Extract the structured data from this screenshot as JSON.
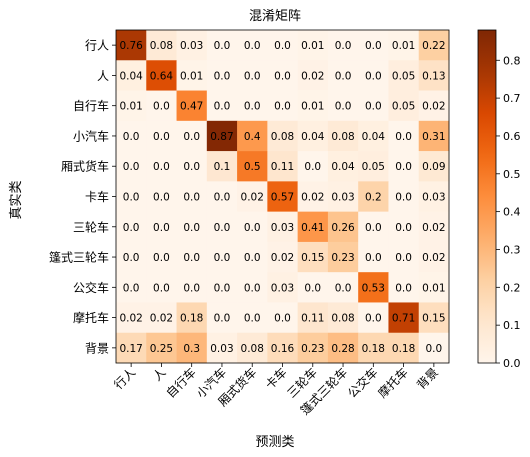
{
  "chart_data": {
    "type": "heatmap",
    "title": "混淆矩阵",
    "xlabel": "预测类",
    "ylabel": "真实类",
    "categories": [
      "行人",
      "人",
      "自行车",
      "小汽车",
      "厢式货车",
      "卡车",
      "三轮车",
      "篷式三轮车",
      "公交车",
      "摩托车",
      "背景"
    ],
    "values": [
      [
        "0.76",
        "0.08",
        "0.03",
        "0.0",
        "0.0",
        "0.0",
        "0.01",
        "0.0",
        "0.0",
        "0.01",
        "0.22"
      ],
      [
        "0.04",
        "0.64",
        "0.01",
        "0.0",
        "0.0",
        "0.0",
        "0.02",
        "0.0",
        "0.0",
        "0.05",
        "0.13"
      ],
      [
        "0.01",
        "0.0",
        "0.47",
        "0.0",
        "0.0",
        "0.0",
        "0.01",
        "0.0",
        "0.0",
        "0.05",
        "0.02"
      ],
      [
        "0.0",
        "0.0",
        "0.0",
        "0.87",
        "0.4",
        "0.08",
        "0.04",
        "0.08",
        "0.04",
        "0.0",
        "0.31"
      ],
      [
        "0.0",
        "0.0",
        "0.0",
        "0.1",
        "0.5",
        "0.11",
        "0.0",
        "0.04",
        "0.05",
        "0.0",
        "0.09"
      ],
      [
        "0.0",
        "0.0",
        "0.0",
        "0.0",
        "0.02",
        "0.57",
        "0.02",
        "0.03",
        "0.2",
        "0.0",
        "0.03"
      ],
      [
        "0.0",
        "0.0",
        "0.0",
        "0.0",
        "0.0",
        "0.03",
        "0.41",
        "0.26",
        "0.0",
        "0.0",
        "0.02"
      ],
      [
        "0.0",
        "0.0",
        "0.0",
        "0.0",
        "0.0",
        "0.02",
        "0.15",
        "0.23",
        "0.0",
        "0.0",
        "0.02"
      ],
      [
        "0.0",
        "0.0",
        "0.0",
        "0.0",
        "0.0",
        "0.03",
        "0.0",
        "0.0",
        "0.53",
        "0.0",
        "0.01"
      ],
      [
        "0.02",
        "0.02",
        "0.18",
        "0.0",
        "0.0",
        "0.0",
        "0.11",
        "0.08",
        "0.0",
        "0.71",
        "0.15"
      ],
      [
        "0.17",
        "0.25",
        "0.3",
        "0.03",
        "0.08",
        "0.16",
        "0.23",
        "0.28",
        "0.18",
        "0.18",
        "0.0"
      ]
    ],
    "colorbar": {
      "range": [
        0.0,
        0.88
      ],
      "ticks": [
        "0.0",
        "0.1",
        "0.2",
        "0.3",
        "0.4",
        "0.5",
        "0.6",
        "0.7",
        "0.8"
      ]
    },
    "colormap": "Oranges",
    "grid": false
  }
}
